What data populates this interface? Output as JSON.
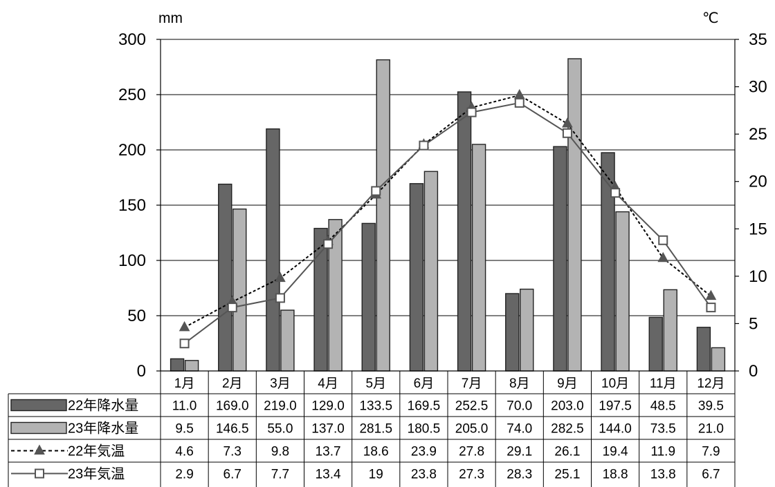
{
  "chart_data": {
    "type": "bar",
    "categories": [
      "1月",
      "2月",
      "3月",
      "4月",
      "5月",
      "6月",
      "7月",
      "8月",
      "9月",
      "10月",
      "11月",
      "12月"
    ],
    "y_left_unit": "mm",
    "y_right_unit": "℃",
    "y_left_range": [
      0,
      300
    ],
    "y_left_ticks": [
      "0",
      "50",
      "100",
      "150",
      "200",
      "250",
      "300"
    ],
    "y_right_range": [
      0,
      35
    ],
    "y_right_ticks": [
      "0",
      "5",
      "10",
      "15",
      "20",
      "25",
      "30",
      "35"
    ],
    "grid": true,
    "bar_series": [
      {
        "name": "22年降水量",
        "color": "#666666",
        "values": [
          11.0,
          169.0,
          219.0,
          129.0,
          133.5,
          169.5,
          252.5,
          70.0,
          203.0,
          197.5,
          48.5,
          39.5
        ],
        "labels": [
          "11.0",
          "169.0",
          "219.0",
          "129.0",
          "133.5",
          "169.5",
          "252.5",
          "70.0",
          "203.0",
          "197.5",
          "48.5",
          "39.5"
        ]
      },
      {
        "name": "23年降水量",
        "color": "#b3b3b3",
        "values": [
          9.5,
          146.5,
          55.0,
          137.0,
          281.5,
          180.5,
          205.0,
          74.0,
          282.5,
          144.0,
          73.5,
          21.0
        ],
        "labels": [
          "9.5",
          "146.5",
          "55.0",
          "137.0",
          "281.5",
          "180.5",
          "205.0",
          "74.0",
          "282.5",
          "144.0",
          "73.5",
          "21.0"
        ]
      }
    ],
    "line_series": [
      {
        "name": "22年気温",
        "color": "#000000",
        "marker": "triangle",
        "dash": true,
        "values": [
          4.6,
          7.3,
          9.8,
          13.7,
          18.6,
          23.9,
          27.8,
          29.1,
          26.1,
          19.4,
          11.9,
          7.9
        ],
        "labels": [
          "4.6",
          "7.3",
          "9.8",
          "13.7",
          "18.6",
          "23.9",
          "27.8",
          "29.1",
          "26.1",
          "19.4",
          "11.9",
          "7.9"
        ]
      },
      {
        "name": "23年気温",
        "color": "#555555",
        "marker": "square",
        "dash": false,
        "values": [
          2.9,
          6.7,
          7.7,
          13.4,
          19,
          23.8,
          27.3,
          28.3,
          25.1,
          18.8,
          13.8,
          6.7
        ],
        "labels": [
          "2.9",
          "6.7",
          "7.7",
          "13.4",
          "19",
          "23.8",
          "27.3",
          "28.3",
          "25.1",
          "18.8",
          "13.8",
          "6.7"
        ]
      }
    ]
  }
}
